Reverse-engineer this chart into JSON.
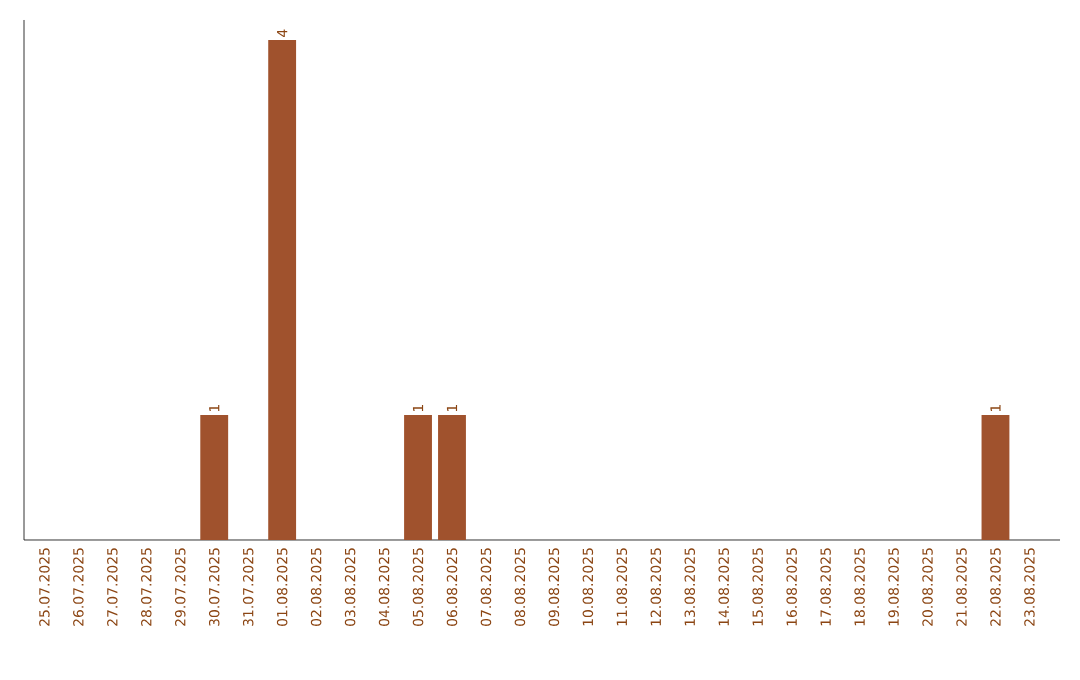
{
  "chart_data": {
    "type": "bar",
    "categories": [
      "25.07.2025",
      "26.07.2025",
      "27.07.2025",
      "28.07.2025",
      "29.07.2025",
      "30.07.2025",
      "31.07.2025",
      "01.08.2025",
      "02.08.2025",
      "03.08.2025",
      "04.08.2025",
      "05.08.2025",
      "06.08.2025",
      "07.08.2025",
      "08.08.2025",
      "09.08.2025",
      "10.08.2025",
      "11.08.2025",
      "12.08.2025",
      "13.08.2025",
      "14.08.2025",
      "15.08.2025",
      "16.08.2025",
      "17.08.2025",
      "18.08.2025",
      "19.08.2025",
      "20.08.2025",
      "21.08.2025",
      "22.08.2025",
      "23.08.2025"
    ],
    "values": [
      0,
      0,
      0,
      0,
      0,
      1,
      0,
      4,
      0,
      0,
      0,
      1,
      1,
      0,
      0,
      0,
      0,
      0,
      0,
      0,
      0,
      0,
      0,
      0,
      0,
      0,
      0,
      0,
      1,
      0
    ],
    "value_labels": [
      null,
      null,
      null,
      null,
      null,
      "1",
      null,
      "4",
      null,
      null,
      null,
      "1",
      "1",
      null,
      null,
      null,
      null,
      null,
      null,
      null,
      null,
      null,
      null,
      null,
      null,
      null,
      null,
      null,
      "1",
      null
    ],
    "color": "#a0522d"
  }
}
